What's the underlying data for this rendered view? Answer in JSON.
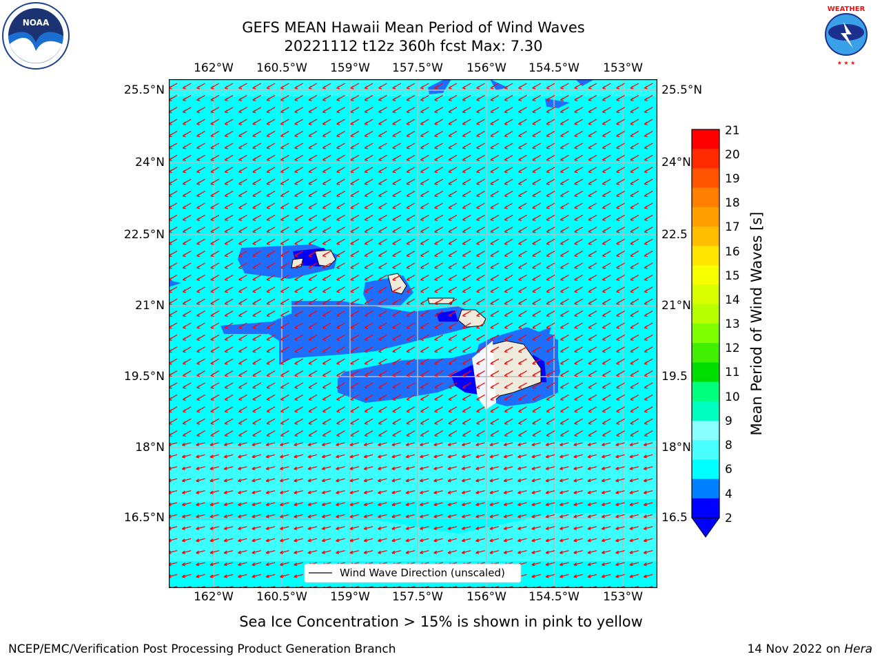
{
  "title_line1": "GEFS MEAN Hawaii Mean Period of Wind Waves",
  "title_line2": "20221112 t12z 360h fcst   Max: 7.30",
  "lon_ticks": [
    "162°W",
    "160.5°W",
    "159°W",
    "157.5°W",
    "156°W",
    "154.5°W",
    "153°W"
  ],
  "lat_ticks": [
    "25.5°N",
    "24°N",
    "22.5°N",
    "21°N",
    "19.5°N",
    "18°N",
    "16.5°N"
  ],
  "lat_ticks_right": [
    "25.5°N",
    "24°N",
    "22.5",
    "21°N",
    "19.5",
    "18°N",
    "16.5"
  ],
  "legend_label": "Wind Wave Direction (unscaled)",
  "colorbar": {
    "label": "Mean Period of Wind Waves [s]",
    "ticks": [
      "21",
      "20",
      "19",
      "18",
      "17",
      "16",
      "15",
      "14",
      "13",
      "12",
      "11",
      "10",
      "9",
      "8",
      "6",
      "4",
      "2"
    ],
    "colors": [
      "#ff0000",
      "#ff2a00",
      "#ff5500",
      "#ff7f00",
      "#ff9f00",
      "#ffbf00",
      "#ffe600",
      "#f5ff00",
      "#d8ff00",
      "#b8ff00",
      "#80ff00",
      "#40f000",
      "#00dd00",
      "#00ff7f",
      "#00ffc0",
      "#8affff",
      "#4affff",
      "#00ffff",
      "#007fff",
      "#0000ff"
    ]
  },
  "footer_note": "Sea Ice Concentration > 15% is shown in pink to yellow",
  "credit": "NCEP/EMC/Verification Post Processing Product Generation Branch",
  "footer_date": "14 Nov 2022 on",
  "footer_host": "Hera",
  "logos": {
    "left": "NOAA",
    "right": "NATIONAL WEATHER SERVICE"
  },
  "colors": {
    "background_period": "#00ffff",
    "mid_period": "#1e6fff",
    "low_period": "#0000ff",
    "arrows": "#ff0000",
    "land": "#efebdc"
  }
}
